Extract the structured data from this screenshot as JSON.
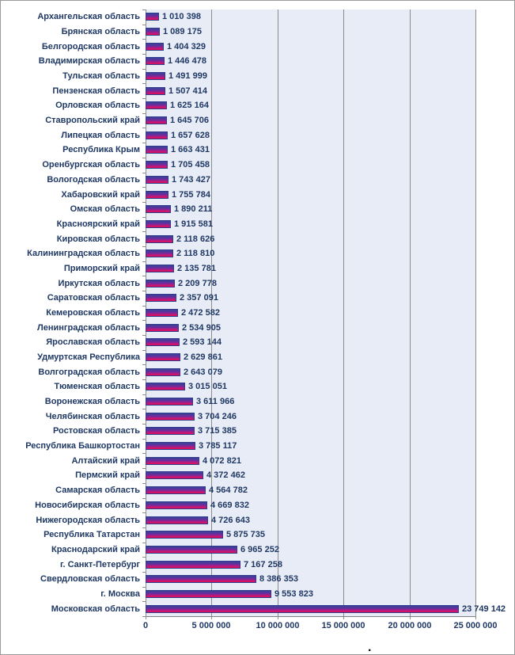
{
  "chart_data": {
    "type": "bar",
    "orientation": "horizontal",
    "title": "",
    "xlabel": "",
    "ylabel": "",
    "legend": "none",
    "grid": "vertical",
    "xlim": [
      0,
      25000000
    ],
    "categories": [
      "Архангельская область",
      "Брянская область",
      "Белгородская область",
      "Владимирская область",
      "Тульская область",
      "Пензенская область",
      "Орловская область",
      "Ставропольский край",
      "Липецкая область",
      "Республика Крым",
      "Оренбургская область",
      "Вологодская область",
      "Хабаровский край",
      "Омская область",
      "Красноярский край",
      "Кировская область",
      "Калининградская область",
      "Приморский край",
      "Иркутская область",
      "Саратовская область",
      "Кемеровская область",
      "Ленинградская область",
      "Ярославская область",
      "Удмуртская Республика",
      "Волгоградская область",
      "Тюменская область",
      "Воронежская область",
      "Челябинская область",
      "Ростовская область",
      "Республика Башкортостан",
      "Алтайский край",
      "Пермский край",
      "Самарская область",
      "Новосибирская область",
      "Нижегородская область",
      "Республика Татарстан",
      "Краснодарский край",
      "г. Санкт-Петербург",
      "Свердловская область",
      "г. Москва",
      "Московская область"
    ],
    "values": [
      1010398,
      1089175,
      1404329,
      1446478,
      1491999,
      1507414,
      1625164,
      1645706,
      1657628,
      1663431,
      1705458,
      1743427,
      1755784,
      1890211,
      1915581,
      2118626,
      2118810,
      2135781,
      2209778,
      2357091,
      2472582,
      2534905,
      2593144,
      2629861,
      2643079,
      3015051,
      3611966,
      3704246,
      3715385,
      3785117,
      4072821,
      4372462,
      4564782,
      4669832,
      4726643,
      5875735,
      6965252,
      7167258,
      8386353,
      9553823,
      23749142
    ],
    "value_labels": [
      "1 010 398",
      "1 089 175",
      "1 404 329",
      "1 446 478",
      "1 491 999",
      "1 507 414",
      "1 625 164",
      "1 645 706",
      "1 657 628",
      "1 663 431",
      "1 705 458",
      "1 743 427",
      "1 755 784",
      "1 890 211",
      "1 915 581",
      "2 118 626",
      "2 118 810",
      "2 135 781",
      "2 209 778",
      "2 357 091",
      "2 472 582",
      "2 534 905",
      "2 593 144",
      "2 629 861",
      "2 643 079",
      "3 015 051",
      "3 611 966",
      "3 704 246",
      "3 715 385",
      "3 785 117",
      "4 072 821",
      "4 372 462",
      "4 564 782",
      "4 669 832",
      "4 726 643",
      "5 875 735",
      "6 965 252",
      "7 167 258",
      "8 386 353",
      "9 553 823",
      "23 749 142"
    ],
    "x_tick_values": [
      0,
      5000000,
      10000000,
      15000000,
      20000000,
      25000000
    ],
    "x_tick_labels": [
      "0",
      "5 000 000",
      "10 000 000",
      "15 000 000",
      "20 000 000",
      "25 000 000"
    ],
    "colors": {
      "plot_background": "#e8ecf6",
      "gridline": "#8c8c8c",
      "bar_border": "#2f3d8f",
      "bar_gradient_top": "#3b3f96",
      "bar_gradient_mid": "#8d2492",
      "bar_gradient_bottom": "#e0105f",
      "label_text": "#1f3864",
      "frame_border": "#9a9a9a"
    }
  },
  "footer": {
    "dot": "."
  }
}
